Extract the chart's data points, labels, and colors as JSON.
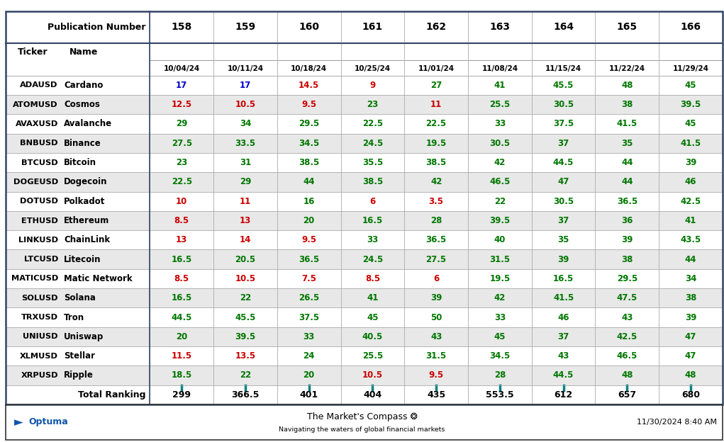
{
  "pub_numbers": [
    "158",
    "159",
    "160",
    "161",
    "162",
    "163",
    "164",
    "165",
    "166"
  ],
  "dates": [
    "10/04/24",
    "10/11/24",
    "10/18/24",
    "10/25/24",
    "11/01/24",
    "11/08/24",
    "11/15/24",
    "11/22/24",
    "11/29/24"
  ],
  "tickers": [
    "ADAUSD",
    "ATOMUSD",
    "AVAXUSD",
    "BNBUSD",
    "BTCUSD",
    "DOGEUSD",
    "DOTUSD",
    "ETHUSD",
    "LINKUSD",
    "LTCUSD",
    "MATICUSD",
    "SOLUSD",
    "TRXUSD",
    "UNIUSD",
    "XLMUSD",
    "XRPUSD"
  ],
  "names": [
    "Cardano",
    "Cosmos",
    "Avalanche",
    "Binance",
    "Bitcoin",
    "Dogecoin",
    "Polkadot",
    "Ethereum",
    "ChainLink",
    "Litecoin",
    "Matic Network",
    "Solana",
    "Tron",
    "Uniswap",
    "Stellar",
    "Ripple"
  ],
  "values": [
    [
      17,
      17,
      14.5,
      9,
      27,
      41,
      45.5,
      48,
      45
    ],
    [
      12.5,
      10.5,
      9.5,
      23,
      11,
      25.5,
      30.5,
      38,
      39.5
    ],
    [
      29,
      34,
      29.5,
      22.5,
      22.5,
      33,
      37.5,
      41.5,
      45
    ],
    [
      27.5,
      33.5,
      34.5,
      24.5,
      19.5,
      30.5,
      37,
      35,
      41.5
    ],
    [
      23,
      31,
      38.5,
      35.5,
      38.5,
      42,
      44.5,
      44,
      39
    ],
    [
      22.5,
      29,
      44,
      38.5,
      42,
      46.5,
      47,
      44,
      46
    ],
    [
      10,
      11,
      16,
      6,
      3.5,
      22,
      30.5,
      36.5,
      42.5
    ],
    [
      8.5,
      13,
      20,
      16.5,
      28,
      39.5,
      37,
      36,
      41
    ],
    [
      13,
      14,
      9.5,
      33,
      36.5,
      40,
      35,
      39,
      43.5
    ],
    [
      16.5,
      20.5,
      36.5,
      24.5,
      27.5,
      31.5,
      39,
      38,
      44
    ],
    [
      8.5,
      10.5,
      7.5,
      8.5,
      6,
      19.5,
      16.5,
      29.5,
      34
    ],
    [
      16.5,
      22,
      26.5,
      41,
      39,
      42,
      41.5,
      47.5,
      38
    ],
    [
      44.5,
      45.5,
      37.5,
      45,
      50,
      33,
      46,
      43,
      39
    ],
    [
      20,
      39.5,
      33,
      40.5,
      43,
      45,
      37,
      42.5,
      47
    ],
    [
      11.5,
      13.5,
      24,
      25.5,
      31.5,
      34.5,
      43,
      46.5,
      47
    ],
    [
      18.5,
      22,
      20,
      10.5,
      9.5,
      28,
      44.5,
      48,
      48
    ]
  ],
  "colors": [
    [
      "blue",
      "blue",
      "red",
      "red",
      "green",
      "green",
      "green",
      "green",
      "green"
    ],
    [
      "red",
      "red",
      "red",
      "green",
      "red",
      "green",
      "green",
      "green",
      "green"
    ],
    [
      "green",
      "green",
      "green",
      "green",
      "green",
      "green",
      "green",
      "green",
      "green"
    ],
    [
      "green",
      "green",
      "green",
      "green",
      "green",
      "green",
      "green",
      "green",
      "green"
    ],
    [
      "green",
      "green",
      "green",
      "green",
      "green",
      "green",
      "green",
      "green",
      "green"
    ],
    [
      "green",
      "green",
      "green",
      "green",
      "green",
      "green",
      "green",
      "green",
      "green"
    ],
    [
      "red",
      "red",
      "green",
      "red",
      "red",
      "green",
      "green",
      "green",
      "green"
    ],
    [
      "red",
      "red",
      "green",
      "green",
      "green",
      "green",
      "green",
      "green",
      "green"
    ],
    [
      "red",
      "red",
      "red",
      "green",
      "green",
      "green",
      "green",
      "green",
      "green"
    ],
    [
      "green",
      "green",
      "green",
      "green",
      "green",
      "green",
      "green",
      "green",
      "green"
    ],
    [
      "red",
      "red",
      "red",
      "red",
      "red",
      "green",
      "green",
      "green",
      "green"
    ],
    [
      "green",
      "green",
      "green",
      "green",
      "green",
      "green",
      "green",
      "green",
      "green"
    ],
    [
      "green",
      "green",
      "green",
      "green",
      "green",
      "green",
      "green",
      "green",
      "green"
    ],
    [
      "green",
      "green",
      "green",
      "green",
      "green",
      "green",
      "green",
      "green",
      "green"
    ],
    [
      "red",
      "red",
      "green",
      "green",
      "green",
      "green",
      "green",
      "green",
      "green"
    ],
    [
      "green",
      "green",
      "green",
      "red",
      "red",
      "green",
      "green",
      "green",
      "green"
    ]
  ],
  "totals": [
    "299",
    "366.5",
    "401",
    "404",
    "435",
    "553.5",
    "612",
    "657",
    "680"
  ],
  "footer_sub": "Navigating the waters of global financial markets",
  "footer_date": "11/30/2024 8:40 AM",
  "title_row": "Publication Number",
  "color_map": {
    "red": "#cc0000",
    "green": "#007700",
    "blue": "#0000cc",
    "black": "#000000"
  },
  "header_bg": "#ffffff",
  "alt_row_bg": "#e8e8e8",
  "white_row_bg": "#ffffff",
  "grid_color": "#aaaaaa",
  "border_color": "#334466",
  "total_tick_color": "#008080"
}
